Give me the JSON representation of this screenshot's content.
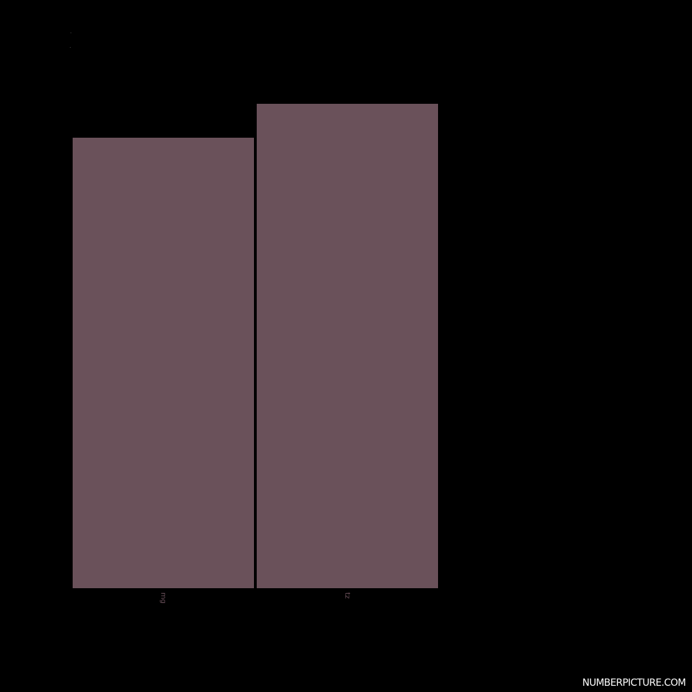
{
  "chart_data": {
    "type": "bar",
    "categories": [
      "mg",
      "tz"
    ],
    "values": [
      93,
      100
    ],
    "ylim": [
      0,
      100
    ],
    "grid": false,
    "legend": "none",
    "colors": {
      "background": "#000000",
      "bar": "#6a515a",
      "tick_label": "#6a505a"
    }
  },
  "watermark": "NUMBERPICTURE.COM"
}
